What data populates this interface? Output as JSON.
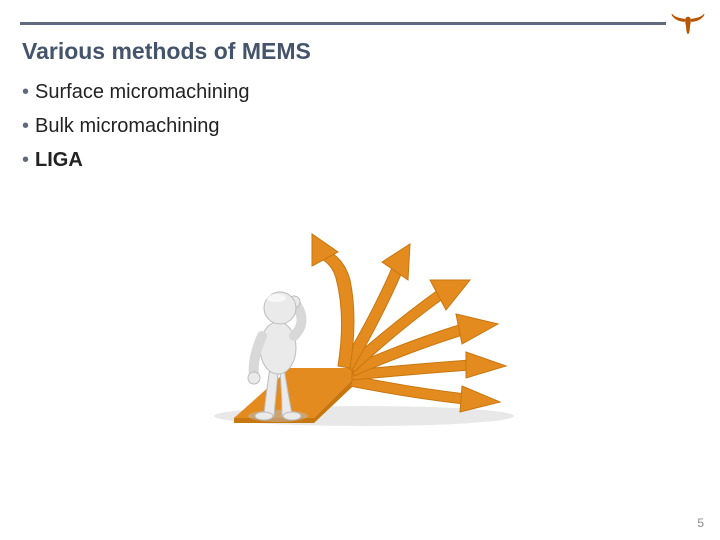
{
  "colors": {
    "rule": "#5f6a7d",
    "title": "#44546a",
    "bullet_dot": "#5f6b7d",
    "bullet_text": "#222222",
    "page_num": "#8b8b8b",
    "logo": "#b75500",
    "arrow": "#e38b1e",
    "arrow_shadow": "#c8770f",
    "figure_body": "#eaeaea",
    "figure_shadow": "#bcbcbc",
    "ground_shadow": "#d8d8d8"
  },
  "title": "Various methods of MEMS",
  "bullets": [
    {
      "text": "Surface micromachining",
      "bold": false
    },
    {
      "text": "Bulk micromachining",
      "bold": false
    },
    {
      "text": "LIGA",
      "bold": true
    }
  ],
  "page_number": "5",
  "logo_name": "longhorn-icon",
  "illustration_name": "decision-paths-figure"
}
